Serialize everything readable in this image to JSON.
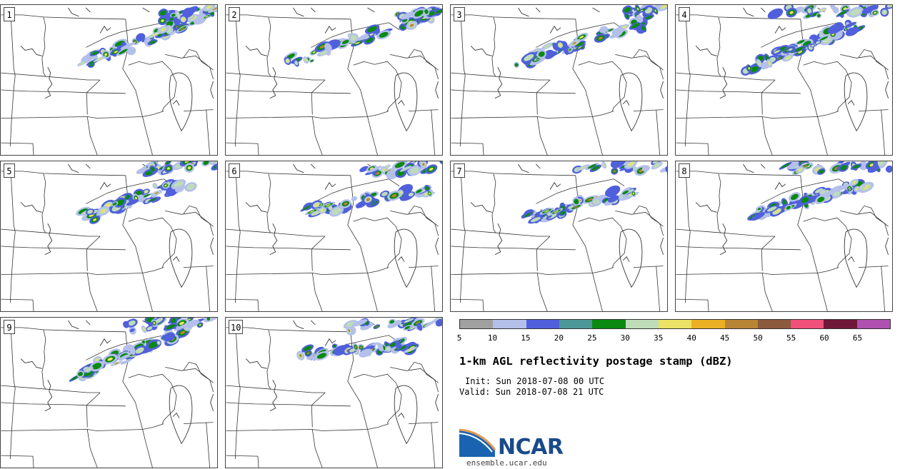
{
  "title": "1-km AGL reflectivity postage stamp (dBZ)",
  "init_text": "Init: Sun 2018-07-08 00 UTC",
  "valid_text": "Valid: Sun 2018-07-08 21 UTC",
  "panels": [
    {
      "label": "1"
    },
    {
      "label": "2"
    },
    {
      "label": "3"
    },
    {
      "label": "4"
    },
    {
      "label": "5"
    },
    {
      "label": "6"
    },
    {
      "label": "7"
    },
    {
      "label": "8"
    },
    {
      "label": "9"
    },
    {
      "label": "10"
    }
  ],
  "colorbar": {
    "ticks": [
      "5",
      "10",
      "15",
      "20",
      "25",
      "30",
      "35",
      "40",
      "45",
      "50",
      "55",
      "60",
      "65"
    ],
    "colors": [
      "#a0a0a0",
      "#b4c0ea",
      "#5060dc",
      "#4c9898",
      "#0a8a10",
      "#bedcb8",
      "#ece266",
      "#ebb024",
      "#b88436",
      "#8c5a3c",
      "#f0507a",
      "#701838",
      "#b050b0"
    ]
  },
  "logo": {
    "name": "NCAR",
    "url": "ensemble.ucar.edu"
  }
}
